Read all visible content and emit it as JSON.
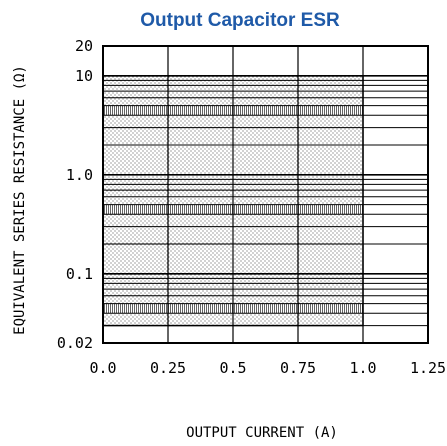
{
  "chart_data": {
    "type": "area",
    "title": "Output Capacitor ESR",
    "xlabel": "OUTPUT CURRENT (A)",
    "ylabel": "EQUIVALENT SERIES RESISTANCE (Ω)",
    "x_scale": "linear",
    "y_scale": "log",
    "xlim": [
      0,
      1.25
    ],
    "ylim": [
      0.02,
      20
    ],
    "x_ticks": [
      0,
      0.25,
      0.5,
      0.75,
      1.0,
      1.25
    ],
    "x_tick_labels": [
      "0.0",
      "0.25",
      "0.5",
      "0.75",
      "1.0",
      "1.25"
    ],
    "y_ticks": [
      0.02,
      0.1,
      1.0,
      10,
      20
    ],
    "y_tick_labels": [
      "0.02",
      "0.1",
      "1.0",
      "10",
      "20"
    ],
    "grid": true,
    "stable_region": {
      "x": [
        0,
        1.0
      ],
      "y": [
        0.03,
        10
      ]
    }
  }
}
